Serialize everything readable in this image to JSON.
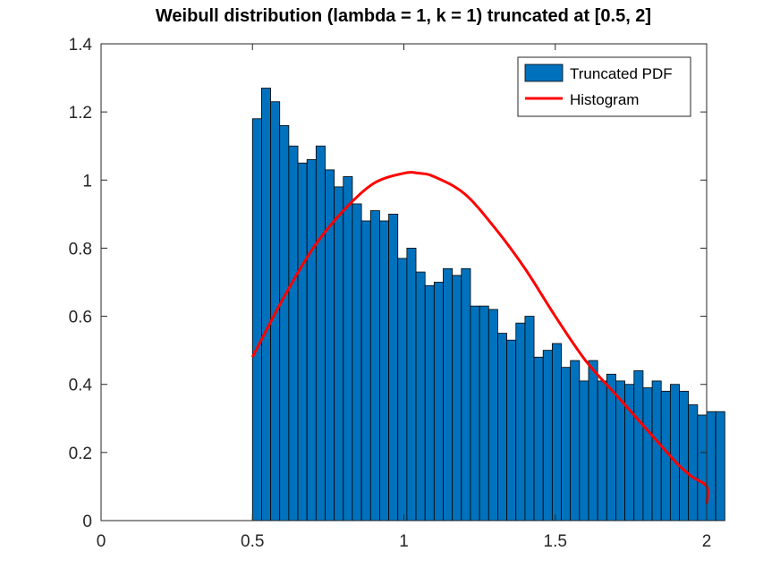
{
  "chart_data": {
    "type": "bar",
    "title": "Weibull distribution (lambda = 1, k = 1) truncated at [0.5, 2]",
    "xlabel": "",
    "ylabel": "",
    "xlim": [
      0,
      2
    ],
    "ylim": [
      0,
      1.4
    ],
    "x_ticks": [
      "0",
      "0.5",
      "1",
      "1.5",
      "2"
    ],
    "y_ticks": [
      "0",
      "0.2",
      "0.4",
      "0.6",
      "0.8",
      "1",
      "1.2",
      "1.4"
    ],
    "x_tick_values": [
      0,
      0.5,
      1,
      1.5,
      2
    ],
    "y_tick_values": [
      0,
      0.2,
      0.4,
      0.6,
      0.8,
      1,
      1.2,
      1.4
    ],
    "grid": false,
    "legend_position": "top-right",
    "bar_color": "#0072BD",
    "line_color": "#FF0000",
    "histogram": {
      "name": "Truncated PDF",
      "bin_start": 0.5,
      "bin_width": 0.03,
      "values": [
        1.18,
        1.27,
        1.23,
        1.16,
        1.1,
        1.05,
        1.06,
        1.1,
        1.03,
        0.98,
        1.01,
        0.93,
        0.88,
        0.91,
        0.88,
        0.9,
        0.77,
        0.8,
        0.73,
        0.69,
        0.7,
        0.74,
        0.72,
        0.74,
        0.63,
        0.63,
        0.62,
        0.55,
        0.53,
        0.58,
        0.6,
        0.48,
        0.5,
        0.52,
        0.45,
        0.47,
        0.41,
        0.47,
        0.41,
        0.43,
        0.41,
        0.4,
        0.44,
        0.39,
        0.41,
        0.38,
        0.4,
        0.38,
        0.34,
        0.31,
        0.32,
        0.32
      ]
    },
    "curve": {
      "name": "Histogram",
      "x": [
        0.5,
        0.6,
        0.7,
        0.8,
        0.9,
        1.0,
        1.05,
        1.1,
        1.2,
        1.3,
        1.4,
        1.5,
        1.6,
        1.7,
        1.8,
        1.9,
        1.95,
        2.0,
        2.0
      ],
      "y": [
        0.48,
        0.65,
        0.8,
        0.91,
        0.99,
        1.02,
        1.02,
        1.01,
        0.96,
        0.86,
        0.74,
        0.6,
        0.47,
        0.37,
        0.27,
        0.17,
        0.13,
        0.1,
        0.05
      ]
    }
  }
}
